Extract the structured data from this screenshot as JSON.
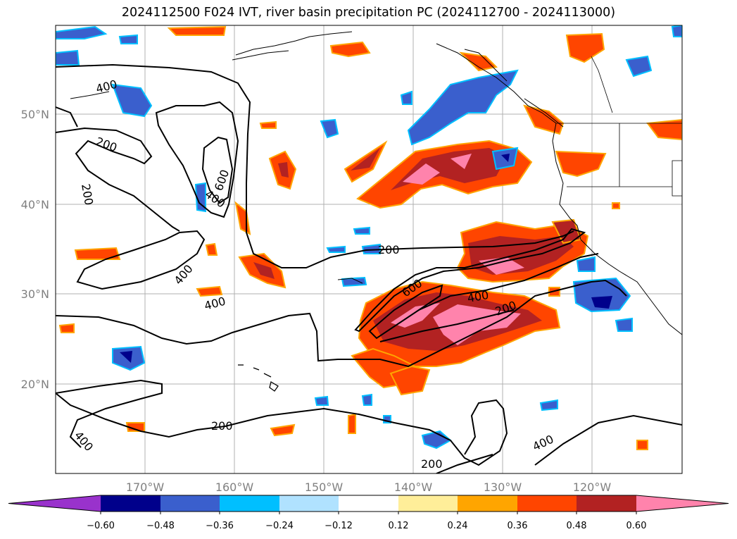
{
  "title": "2024112500 F024 IVT, river basin precipitation PC (2024112700 - 2024113000)",
  "map": {
    "lat_labels": [
      "50°N",
      "40°N",
      "30°N",
      "20°N"
    ],
    "lon_labels": [
      "170°W",
      "160°W",
      "150°W",
      "140°W",
      "130°W",
      "120°W"
    ],
    "contour_labels": [
      {
        "name": "ivt-400-nw",
        "text": "400"
      },
      {
        "name": "ivt-200-nw",
        "text": "200"
      },
      {
        "name": "ivt-200-west",
        "text": "200"
      },
      {
        "name": "ivt-600-north",
        "text": "600"
      },
      {
        "name": "ivt-400-north",
        "text": "400"
      },
      {
        "name": "ivt-400-mid",
        "text": "400"
      },
      {
        "name": "ivt-400-mid-lower",
        "text": "400"
      },
      {
        "name": "ivt-200-center",
        "text": "200"
      },
      {
        "name": "ivt-600-river",
        "text": "600"
      },
      {
        "name": "ivt-400-river",
        "text": "400"
      },
      {
        "name": "ivt-200-river",
        "text": "200"
      },
      {
        "name": "ivt-200-south",
        "text": "200"
      },
      {
        "name": "ivt-400-sw",
        "text": "400"
      },
      {
        "name": "ivt-200-bottom",
        "text": "200"
      },
      {
        "name": "ivt-400-se",
        "text": "400"
      }
    ]
  },
  "colorbar": {
    "colors": [
      "#9932cc",
      "#00008b",
      "#3a5fcd",
      "#00bfff",
      "#b0e2ff",
      "#ffffff",
      "#ffee99",
      "#ffa500",
      "#ff4500",
      "#b22222",
      "#ff83ac"
    ],
    "tick_labels": [
      "−0.60",
      "−0.48",
      "−0.36",
      "−0.24",
      "−0.12",
      "0.12",
      "0.24",
      "0.36",
      "0.48",
      "0.60"
    ]
  }
}
